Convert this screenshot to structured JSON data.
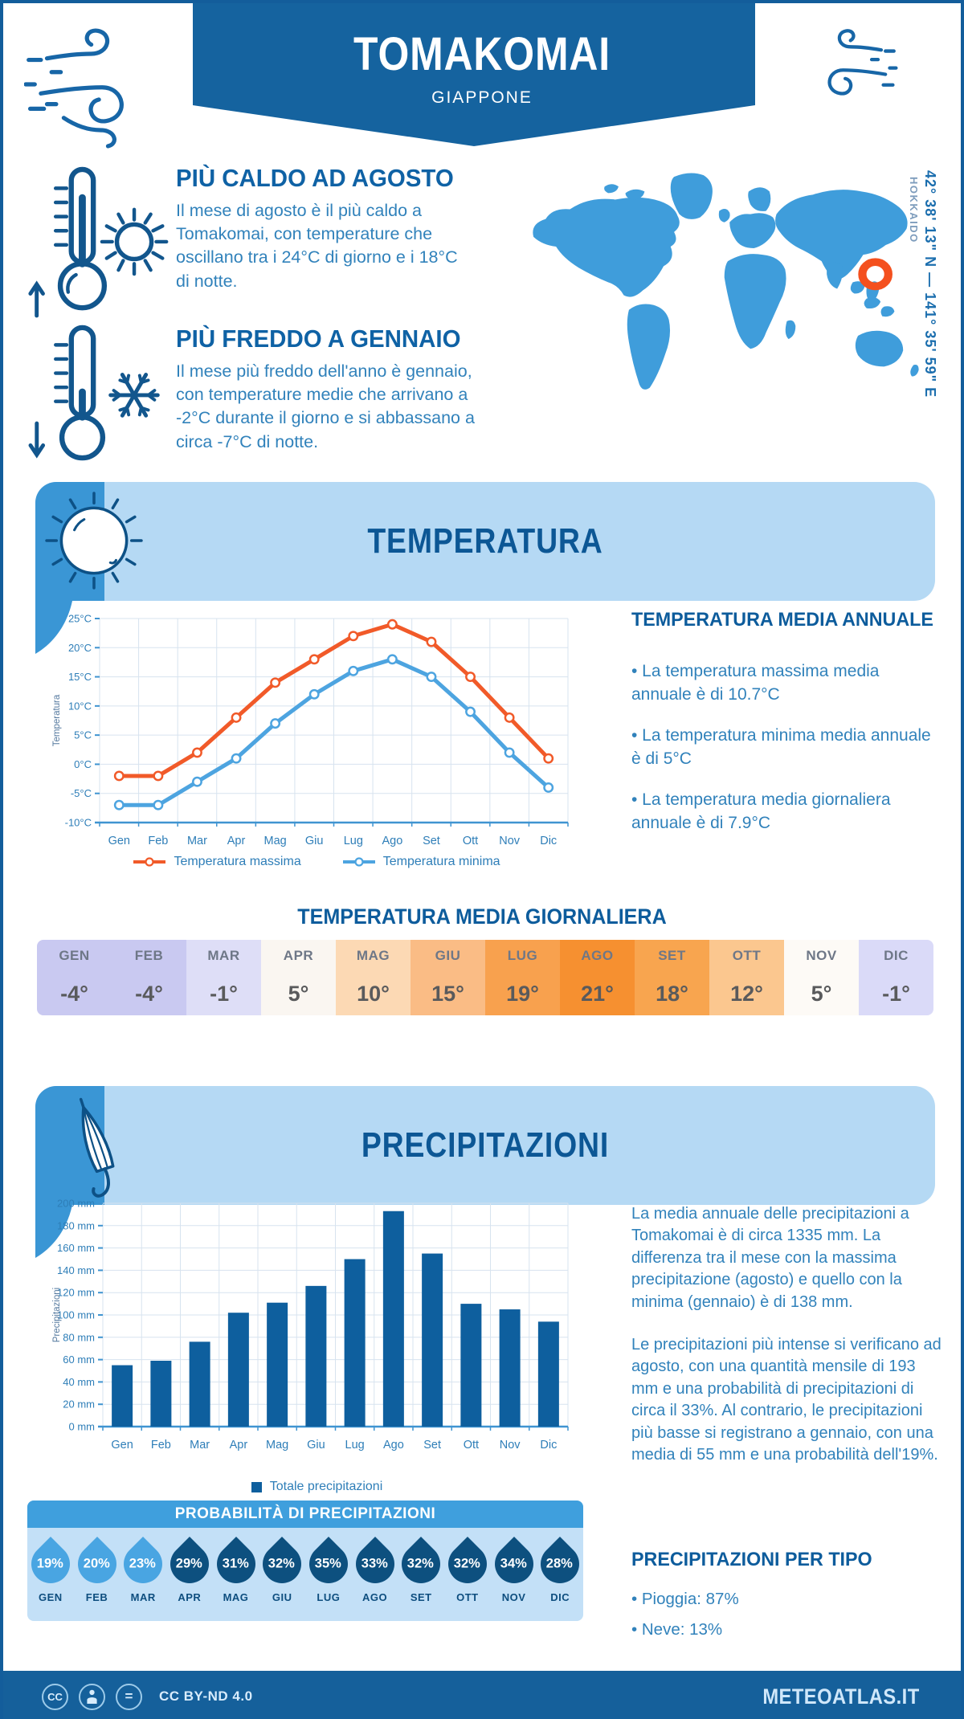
{
  "header": {
    "title": "TOMAKOMAI",
    "subtitle": "GIAPPONE"
  },
  "hero": {
    "warm": {
      "heading": "PIÙ CALDO AD AGOSTO",
      "body": "Il mese di agosto è il più caldo a Tomakomai, con temperature che oscillano tra i 24°C di giorno e i 18°C di notte."
    },
    "cold": {
      "heading": "PIÙ FREDDO A GENNAIO",
      "body": "Il mese più freddo dell'anno è gennaio, con temperature medie che arrivano a -2°C durante il giorno e si abbassano a circa -7°C di notte."
    }
  },
  "map": {
    "region": "HOKKAIDO",
    "coordinates": "42° 38' 13\" N — 141° 35' 59\" E",
    "marker_color": "#f4501e",
    "land_color": "#3f9ddb"
  },
  "chart_data": [
    {
      "id": "temperature",
      "type": "line",
      "categories": [
        "Gen",
        "Feb",
        "Mar",
        "Apr",
        "Mag",
        "Giu",
        "Lug",
        "Ago",
        "Set",
        "Ott",
        "Nov",
        "Dic"
      ],
      "series": [
        {
          "name": "Temperatura massima",
          "color": "#f15a29",
          "values": [
            -2,
            -2,
            2,
            8,
            14,
            18,
            22,
            24,
            21,
            15,
            8,
            1
          ]
        },
        {
          "name": "Temperatura minima",
          "color": "#4da4e0",
          "values": [
            -7,
            -7,
            -3,
            1,
            7,
            12,
            16,
            18,
            15,
            9,
            2,
            -4
          ]
        }
      ],
      "ylabel": "Temperatura",
      "ylim": [
        -10,
        25
      ],
      "ytick_step": 5,
      "yunit": "°C",
      "grid": true,
      "legend_position": "bottom"
    },
    {
      "id": "precipitation",
      "type": "bar",
      "categories": [
        "Gen",
        "Feb",
        "Mar",
        "Apr",
        "Mag",
        "Giu",
        "Lug",
        "Ago",
        "Set",
        "Ott",
        "Nov",
        "Dic"
      ],
      "series": [
        {
          "name": "Totale precipitazioni",
          "color": "#0e5f9e",
          "values": [
            55,
            59,
            76,
            102,
            111,
            126,
            150,
            193,
            155,
            110,
            105,
            94
          ]
        }
      ],
      "ylabel": "Precipitazioni",
      "ylim": [
        0,
        200
      ],
      "ytick_step": 20,
      "yunit": " mm",
      "grid": true,
      "legend_position": "bottom"
    }
  ],
  "temperature": {
    "banner": "TEMPERATURA",
    "annual": {
      "heading": "TEMPERATURA MEDIA ANNUALE",
      "bullets": [
        "La temperatura massima media annuale è di 10.7°C",
        "La temperatura minima media annuale è di 5°C",
        "La temperatura media giornaliera annuale è di 7.9°C"
      ]
    },
    "daily": {
      "heading": "TEMPERATURA MEDIA GIORNALIERA",
      "months": [
        "GEN",
        "FEB",
        "MAR",
        "APR",
        "MAG",
        "GIU",
        "LUG",
        "AGO",
        "SET",
        "OTT",
        "NOV",
        "DIC"
      ],
      "values": [
        "-4°",
        "-4°",
        "-1°",
        "5°",
        "10°",
        "15°",
        "19°",
        "21°",
        "18°",
        "12°",
        "5°",
        "-1°"
      ],
      "cell_colors": [
        "#c9c9f1",
        "#c9c9f1",
        "#dedef7",
        "#faf6f1",
        "#fcd9b4",
        "#fabc85",
        "#f8a14e",
        "#f69030",
        "#f8a54f",
        "#fbc78f",
        "#fdfaf6",
        "#dadaf8"
      ]
    }
  },
  "precipitation": {
    "banner": "PRECIPITAZIONI",
    "paragraphs": [
      "La media annuale delle precipitazioni a Tomakomai è di circa 1335 mm. La differenza tra il mese con la massima precipitazione (agosto) e quello con la minima (gennaio) è di 138 mm.",
      "Le precipitazioni più intense si verificano ad agosto, con una quantità mensile di 193 mm e una probabilità di precipitazioni di circa il 33%. Al contrario, le precipitazioni più basse si registrano a gennaio, con una media di 55 mm e una probabilità dell'19%."
    ],
    "probability": {
      "heading": "PROBABILITÀ DI PRECIPITAZIONI",
      "months": [
        "GEN",
        "FEB",
        "MAR",
        "APR",
        "MAG",
        "GIU",
        "LUG",
        "AGO",
        "SET",
        "OTT",
        "NOV",
        "DIC"
      ],
      "values": [
        "19%",
        "20%",
        "23%",
        "29%",
        "31%",
        "32%",
        "35%",
        "33%",
        "32%",
        "32%",
        "34%",
        "28%"
      ],
      "drop_colors": [
        "#49a5e2",
        "#49a5e2",
        "#49a5e2",
        "#0d507f",
        "#0d507f",
        "#0d507f",
        "#0d507f",
        "#0d507f",
        "#0d507f",
        "#0d507f",
        "#0d507f",
        "#0d507f"
      ]
    },
    "per_type": {
      "heading": "PRECIPITAZIONI PER TIPO",
      "items": [
        "Pioggia: 87%",
        "Neve: 13%"
      ]
    }
  },
  "footer": {
    "license": "CC BY-ND 4.0",
    "site": "METEOATLAS.IT"
  }
}
